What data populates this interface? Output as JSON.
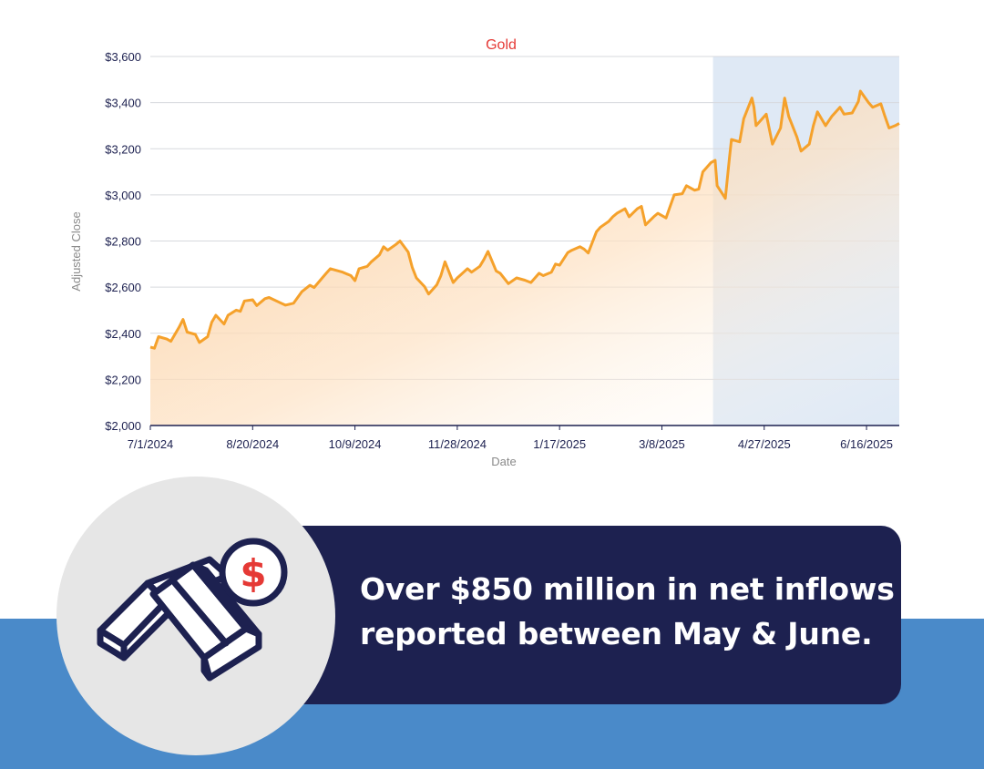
{
  "chart_data": {
    "type": "area",
    "title": "Gold",
    "xlabel": "Date",
    "ylabel": "Adjusted Close",
    "x_start": "7/1/2024",
    "x_end": "7/2/2025",
    "ylim": [
      2000,
      3600
    ],
    "y_ticks": [
      2000,
      2200,
      2400,
      2600,
      2800,
      3000,
      3200,
      3400,
      3600
    ],
    "y_tick_labels": [
      "$2,000",
      "$2,200",
      "$2,400",
      "$2,600",
      "$2,800",
      "$3,000",
      "$3,200",
      "$3,400",
      "$3,600"
    ],
    "x_ticks": [
      "7/1/2024",
      "8/20/2024",
      "10/9/2024",
      "11/28/2024",
      "1/17/2025",
      "3/8/2025",
      "4/27/2025",
      "6/16/2025"
    ],
    "highlight_range": [
      "4/2/2025",
      "7/2/2025"
    ],
    "grid": true,
    "line_color": "#f5a12b",
    "fill_color": "#fbd3a6",
    "highlight_color": "#dfe9f5",
    "series": [
      {
        "values": [
          [
            "7/1/2024",
            2340
          ],
          [
            "7/3/2024",
            2335
          ],
          [
            "7/5/2024",
            2385
          ],
          [
            "7/9/2024",
            2375
          ],
          [
            "7/11/2024",
            2365
          ],
          [
            "7/15/2024",
            2425
          ],
          [
            "7/17/2024",
            2460
          ],
          [
            "7/19/2024",
            2405
          ],
          [
            "7/23/2024",
            2395
          ],
          [
            "7/25/2024",
            2360
          ],
          [
            "7/29/2024",
            2385
          ],
          [
            "7/31/2024",
            2448
          ],
          [
            "8/2/2024",
            2478
          ],
          [
            "8/6/2024",
            2440
          ],
          [
            "8/8/2024",
            2478
          ],
          [
            "8/12/2024",
            2500
          ],
          [
            "8/14/2024",
            2495
          ],
          [
            "8/16/2024",
            2540
          ],
          [
            "8/20/2024",
            2545
          ],
          [
            "8/22/2024",
            2520
          ],
          [
            "8/26/2024",
            2550
          ],
          [
            "8/28/2024",
            2555
          ],
          [
            "9/3/2024",
            2530
          ],
          [
            "9/5/2024",
            2522
          ],
          [
            "9/9/2024",
            2530
          ],
          [
            "9/13/2024",
            2580
          ],
          [
            "9/17/2024",
            2608
          ],
          [
            "9/19/2024",
            2598
          ],
          [
            "9/23/2024",
            2640
          ],
          [
            "9/25/2024",
            2660
          ],
          [
            "9/27/2024",
            2680
          ],
          [
            "10/1/2024",
            2670
          ],
          [
            "10/3/2024",
            2665
          ],
          [
            "10/7/2024",
            2650
          ],
          [
            "10/9/2024",
            2628
          ],
          [
            "10/11/2024",
            2680
          ],
          [
            "10/15/2024",
            2690
          ],
          [
            "10/17/2024",
            2710
          ],
          [
            "10/21/2024",
            2740
          ],
          [
            "10/23/2024",
            2775
          ],
          [
            "10/25/2024",
            2760
          ],
          [
            "10/29/2024",
            2785
          ],
          [
            "10/31/2024",
            2800
          ],
          [
            "11/4/2024",
            2752
          ],
          [
            "11/6/2024",
            2685
          ],
          [
            "11/8/2024",
            2640
          ],
          [
            "11/12/2024",
            2602
          ],
          [
            "11/14/2024",
            2570
          ],
          [
            "11/18/2024",
            2610
          ],
          [
            "11/20/2024",
            2650
          ],
          [
            "11/22/2024",
            2710
          ],
          [
            "11/26/2024",
            2620
          ],
          [
            "11/28/2024",
            2640
          ],
          [
            "12/3/2024",
            2680
          ],
          [
            "12/5/2024",
            2665
          ],
          [
            "12/9/2024",
            2690
          ],
          [
            "12/11/2024",
            2720
          ],
          [
            "12/13/2024",
            2755
          ],
          [
            "12/17/2024",
            2670
          ],
          [
            "12/19/2024",
            2660
          ],
          [
            "12/23/2024",
            2615
          ],
          [
            "12/27/2024",
            2640
          ],
          [
            "12/31/2024",
            2630
          ],
          [
            "1/3/2025",
            2620
          ],
          [
            "1/7/2025",
            2660
          ],
          [
            "1/9/2025",
            2650
          ],
          [
            "1/13/2025",
            2665
          ],
          [
            "1/15/2025",
            2700
          ],
          [
            "1/17/2025",
            2695
          ],
          [
            "1/21/2025",
            2750
          ],
          [
            "1/23/2025",
            2760
          ],
          [
            "1/27/2025",
            2775
          ],
          [
            "1/29/2025",
            2765
          ],
          [
            "1/31/2025",
            2748
          ],
          [
            "2/4/2025",
            2840
          ],
          [
            "2/6/2025",
            2860
          ],
          [
            "2/10/2025",
            2885
          ],
          [
            "2/12/2025",
            2905
          ],
          [
            "2/14/2025",
            2920
          ],
          [
            "2/18/2025",
            2940
          ],
          [
            "2/20/2025",
            2905
          ],
          [
            "2/24/2025",
            2940
          ],
          [
            "2/26/2025",
            2950
          ],
          [
            "2/28/2025",
            2870
          ],
          [
            "3/4/2025",
            2905
          ],
          [
            "3/6/2025",
            2920
          ],
          [
            "3/10/2025",
            2900
          ],
          [
            "3/12/2025",
            2950
          ],
          [
            "3/14/2025",
            3000
          ],
          [
            "3/18/2025",
            3005
          ],
          [
            "3/20/2025",
            3040
          ],
          [
            "3/24/2025",
            3020
          ],
          [
            "3/26/2025",
            3025
          ],
          [
            "3/28/2025",
            3100
          ],
          [
            "4/1/2025",
            3140
          ],
          [
            "4/3/2025",
            3150
          ],
          [
            "4/4/2025",
            3040
          ],
          [
            "4/8/2025",
            2985
          ],
          [
            "4/10/2025",
            3160
          ],
          [
            "4/11/2025",
            3240
          ],
          [
            "4/15/2025",
            3230
          ],
          [
            "4/17/2025",
            3330
          ],
          [
            "4/21/2025",
            3420
          ],
          [
            "4/22/2025",
            3380
          ],
          [
            "4/23/2025",
            3300
          ],
          [
            "4/25/2025",
            3320
          ],
          [
            "4/28/2025",
            3350
          ],
          [
            "5/1/2025",
            3220
          ],
          [
            "5/5/2025",
            3290
          ],
          [
            "5/7/2025",
            3420
          ],
          [
            "5/9/2025",
            3340
          ],
          [
            "5/13/2025",
            3250
          ],
          [
            "5/15/2025",
            3190
          ],
          [
            "5/19/2025",
            3220
          ],
          [
            "5/21/2025",
            3300
          ],
          [
            "5/23/2025",
            3360
          ],
          [
            "5/27/2025",
            3300
          ],
          [
            "5/30/2025",
            3340
          ],
          [
            "6/3/2025",
            3380
          ],
          [
            "6/5/2025",
            3350
          ],
          [
            "6/9/2025",
            3355
          ],
          [
            "6/12/2025",
            3405
          ],
          [
            "6/13/2025",
            3450
          ],
          [
            "6/17/2025",
            3400
          ],
          [
            "6/19/2025",
            3380
          ],
          [
            "6/23/2025",
            3395
          ],
          [
            "6/25/2025",
            3340
          ],
          [
            "6/27/2025",
            3290
          ],
          [
            "6/30/2025",
            3300
          ],
          [
            "7/2/2025",
            3310
          ]
        ]
      }
    ]
  },
  "callout": {
    "line1": "Over $850 million in net inflows",
    "line2": "reported between May & June."
  },
  "colors": {
    "banner_bg": "#1d2150",
    "band_bg": "#4a8ac9",
    "icon_circle_bg": "#e6e6e6",
    "icon_stroke": "#1d2150",
    "dollar_color": "#e53935"
  },
  "icons": {
    "main": "gold-bars-icon",
    "coin": "dollar-coin-icon"
  }
}
